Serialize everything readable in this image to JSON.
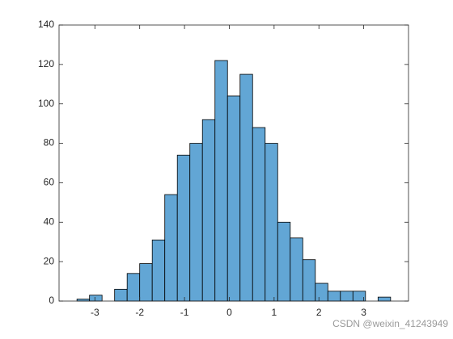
{
  "chart_data": {
    "type": "histogram",
    "bins": [
      -3.4,
      -3.12,
      -2.84,
      -2.56,
      -2.28,
      -2,
      -1.72,
      -1.44,
      -1.16,
      -0.88,
      -0.6,
      -0.32,
      -0.04,
      0.24,
      0.52,
      0.8,
      1.08,
      1.36,
      1.64,
      1.92,
      2.2,
      2.48,
      2.76,
      3.04,
      3.32,
      3.6
    ],
    "values": [
      1,
      3,
      0,
      6,
      14,
      19,
      31,
      54,
      74,
      80,
      92,
      122,
      104,
      115,
      88,
      80,
      40,
      32,
      21,
      9,
      5,
      5,
      5,
      0,
      2
    ],
    "color": "#62a6d5",
    "xlim": [
      -3.8,
      4
    ],
    "xticks": [
      -3,
      -2,
      -1,
      0,
      1,
      2,
      3
    ],
    "ylim": [
      0,
      140
    ],
    "yticks": [
      0,
      20,
      40,
      60,
      80,
      100,
      120,
      140
    ],
    "grid": false
  },
  "watermark": "CSDN @weixin_41243949"
}
